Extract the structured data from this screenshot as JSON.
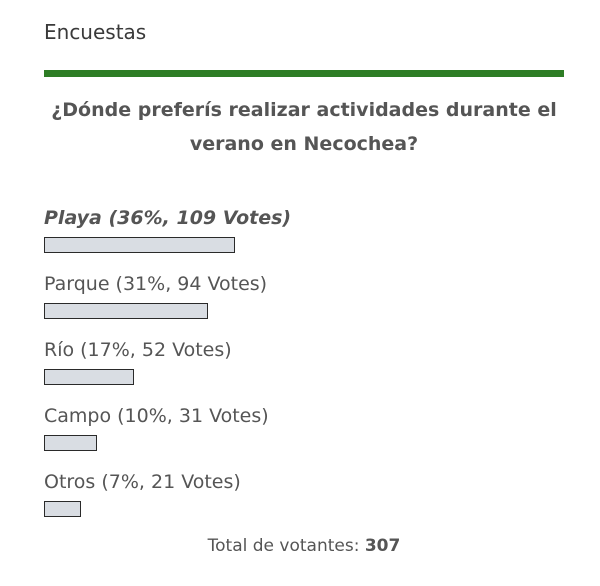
{
  "widget": {
    "title": "Encuestas",
    "accent_color": "#2e7d25"
  },
  "poll": {
    "question": "¿Dónde preferís realizar actividades durante el verano en Necochea?",
    "answers": [
      {
        "label": "Playa (36%, 109 Votes)",
        "percent": 36,
        "leader": true
      },
      {
        "label": "Parque (31%, 94 Votes)",
        "percent": 31,
        "leader": false
      },
      {
        "label": "Río (17%, 52 Votes)",
        "percent": 17,
        "leader": false
      },
      {
        "label": "Campo (10%, 31 Votes)",
        "percent": 10,
        "leader": false
      },
      {
        "label": "Otros (7%, 21 Votes)",
        "percent": 7,
        "leader": false
      }
    ],
    "total_label": "Total de votantes:",
    "total_value": "307"
  }
}
